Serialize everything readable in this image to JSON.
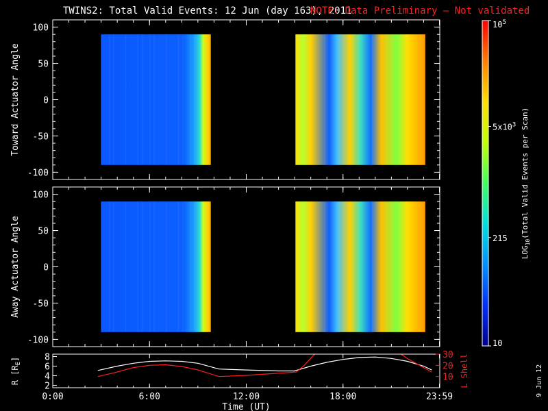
{
  "title": "TWINS2: Total Valid Events: 12 Jun (day 163), 2011",
  "note": "NOTE: Data Preliminary – Not validated",
  "date_stamp": "9 Jun 12",
  "colors": {
    "background": "#000000",
    "axes": "#ffffff",
    "note": "#ff2020",
    "r_line": "#ffffff",
    "l_line": "#ff2020"
  },
  "chart_data": [
    {
      "type": "heatmap",
      "id": "toward",
      "ylabel": "Toward Actuator Angle",
      "ylim": [
        -110,
        110
      ],
      "yticks": [
        100,
        50,
        0,
        -50,
        -100
      ],
      "xlim": [
        0,
        24
      ],
      "data_bands": [
        [
          3.0,
          9.8
        ],
        [
          15.05,
          23.1
        ]
      ],
      "angle_range": [
        -90,
        90
      ]
    },
    {
      "type": "heatmap",
      "id": "away",
      "ylabel": "Away Actuator Angle",
      "ylim": [
        -110,
        110
      ],
      "yticks": [
        100,
        50,
        0,
        -50,
        -100
      ],
      "xlim": [
        0,
        24
      ],
      "data_bands": [
        [
          3.0,
          9.8
        ],
        [
          15.05,
          23.1
        ]
      ],
      "angle_range": [
        -90,
        90
      ]
    },
    {
      "type": "line",
      "id": "orbit",
      "xlabel": "Time (UT)",
      "xlim": [
        0,
        24
      ],
      "xticks": [
        "0:00",
        "6:00",
        "12:00",
        "18:00",
        "23:59"
      ],
      "xtick_values": [
        0,
        6,
        12,
        18,
        23.98
      ],
      "ylabel_left": "R [R",
      "ylabel_left_sub": "E",
      "ylabel_left_end": "]",
      "yticks_left": [
        2,
        4,
        6,
        8
      ],
      "ylim_left": [
        1.5,
        8.5
      ],
      "ylabel_right": "L Shell",
      "yticks_right": [
        10,
        20,
        30
      ],
      "ylim_right": [
        0,
        30
      ],
      "series": [
        {
          "axis": "left",
          "x": [
            2.8,
            4,
            5,
            6,
            7,
            8,
            9,
            10.3,
            12,
            14,
            15,
            16,
            17,
            18,
            19,
            20,
            21,
            22,
            23,
            23.5
          ],
          "values": [
            5.1,
            6.0,
            6.6,
            7.0,
            7.1,
            7.0,
            6.6,
            5.4,
            5.2,
            5.0,
            5.0,
            6.0,
            6.8,
            7.4,
            7.8,
            7.9,
            7.6,
            7.0,
            6.0,
            5.2
          ]
        },
        {
          "axis": "right",
          "x": [
            2.8,
            4,
            5,
            6,
            7,
            8,
            9,
            10.3,
            12,
            13,
            14,
            15.1,
            15.6,
            16.1,
            16.4
          ],
          "values": [
            10,
            14,
            18,
            20,
            20.5,
            19,
            16,
            10,
            11,
            12,
            13,
            14,
            20,
            28,
            32
          ]
        },
        {
          "axis": "right",
          "x": [
            21.5,
            22,
            22.5,
            23,
            23.5
          ],
          "values": [
            31,
            26,
            22,
            18,
            14
          ]
        }
      ]
    }
  ],
  "colorbar": {
    "label": "LOG",
    "label_sub": "10",
    "label_rest": "(Total Valid Events per Scan)",
    "ticks": [
      {
        "value": 10,
        "text": "10"
      },
      {
        "value": 215,
        "text": "215"
      },
      {
        "value": 5000,
        "text": "5x10",
        "sup": "3"
      },
      {
        "value": 100000,
        "text": "10",
        "sup": "5"
      }
    ],
    "stops": [
      "#00008f",
      "#0030ff",
      "#0090ff",
      "#00e0e0",
      "#40ff60",
      "#c0ff00",
      "#ffe000",
      "#ff8000",
      "#ff0000"
    ]
  }
}
